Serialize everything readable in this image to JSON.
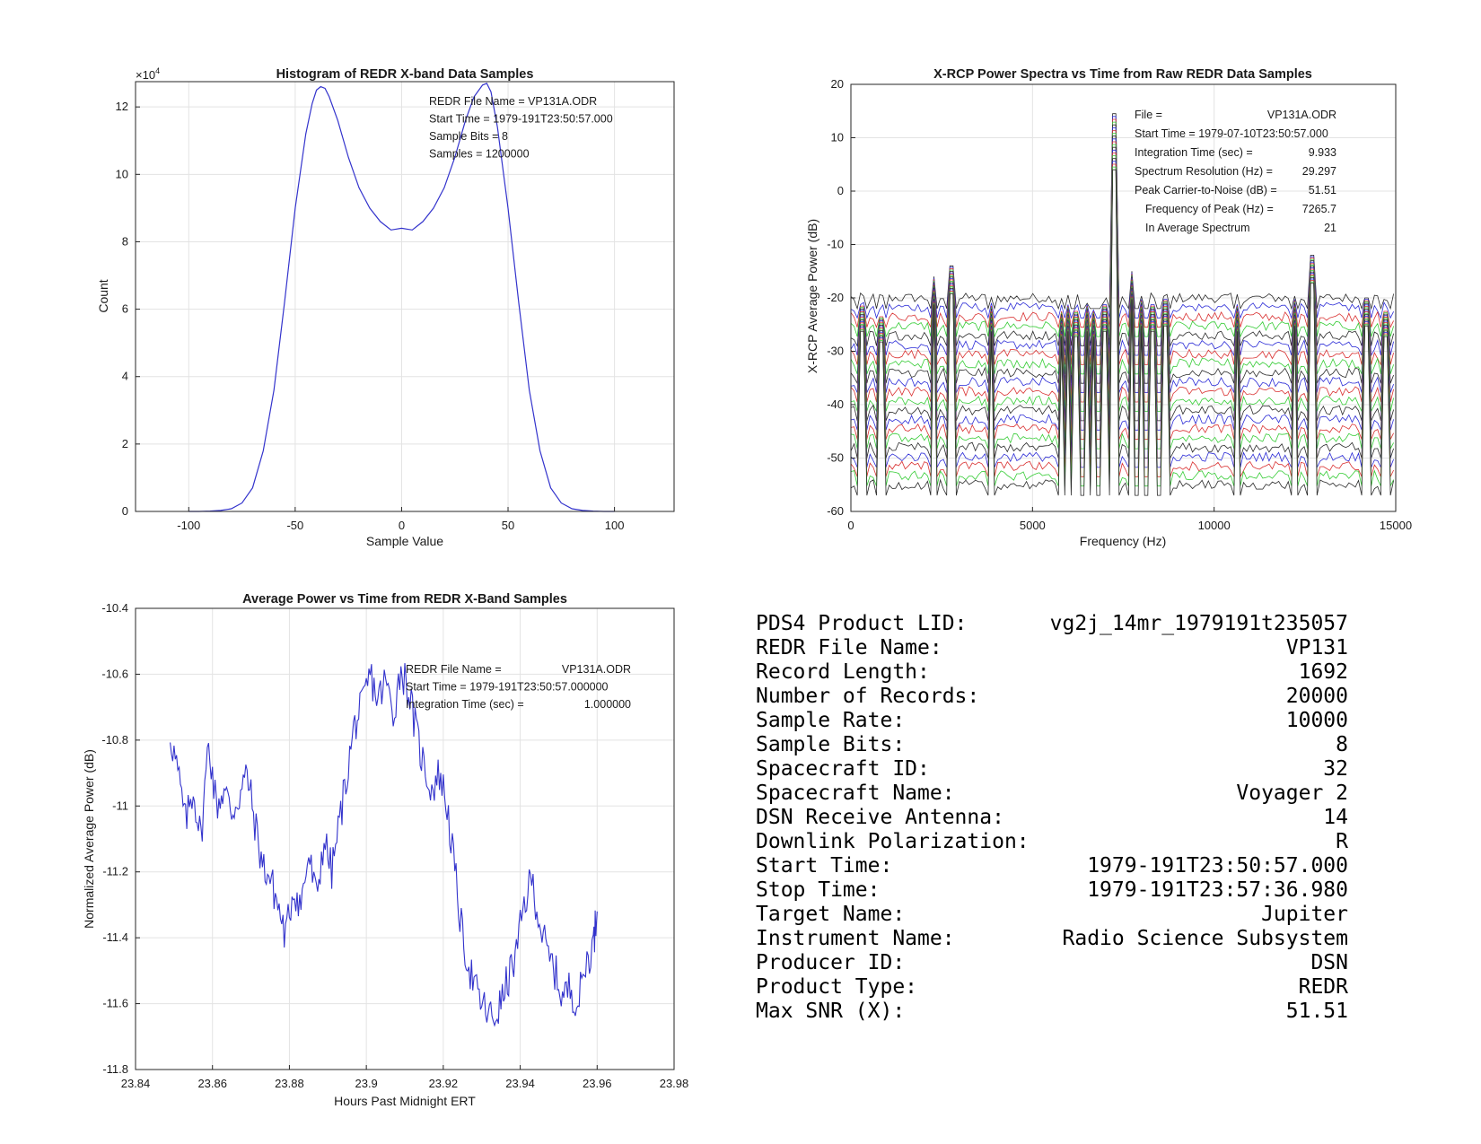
{
  "chart_data": [
    {
      "type": "line",
      "title": "Histogram of REDR X-band Data Samples",
      "xlabel": "Sample Value",
      "ylabel": "Count",
      "y_multiplier": "×10",
      "y_multiplier_exp": "4",
      "xlim": [
        -125,
        128
      ],
      "ylim": [
        0,
        12.75
      ],
      "xticks": [
        "-100",
        "-50",
        "0",
        "50",
        "100"
      ],
      "yticks": [
        "0",
        "2",
        "4",
        "6",
        "8",
        "10",
        "12"
      ],
      "grid": true,
      "line_color": "#3333cc",
      "annotations": [
        "REDR File Name = VP131A.ODR",
        "Start Time = 1979-191T23:50:57.000",
        "Sample Bits = 8",
        "Samples = 1200000"
      ],
      "series": [
        {
          "x": [
            -100,
            -95,
            -90,
            -85,
            -80,
            -75,
            -70,
            -65,
            -60,
            -55,
            -50,
            -45,
            -42,
            -40,
            -38,
            -36,
            -34,
            -30,
            -25,
            -20,
            -15,
            -10,
            -5,
            0,
            5,
            10,
            15,
            20,
            25,
            30,
            34,
            38,
            40,
            42,
            45,
            50,
            55,
            60,
            65,
            70,
            75,
            80,
            85,
            90,
            95,
            100
          ],
          "values": [
            0,
            0,
            0.01,
            0.03,
            0.08,
            0.25,
            0.7,
            1.8,
            3.6,
            6.2,
            9.0,
            11.2,
            12.1,
            12.5,
            12.6,
            12.55,
            12.3,
            11.6,
            10.5,
            9.6,
            9.0,
            8.6,
            8.35,
            8.4,
            8.35,
            8.6,
            9.0,
            9.6,
            10.5,
            11.6,
            12.3,
            12.65,
            12.7,
            12.45,
            11.4,
            9.0,
            6.2,
            3.6,
            1.8,
            0.7,
            0.25,
            0.08,
            0.03,
            0.01,
            0,
            0
          ]
        }
      ]
    },
    {
      "type": "line",
      "title": "X-RCP Power Spectra vs Time from Raw REDR Data Samples",
      "xlabel": "Frequency (Hz)",
      "ylabel": "X-RCP Average Power (dB)",
      "xlim": [
        0,
        15000
      ],
      "ylim": [
        -60,
        20
      ],
      "xticks": [
        "0",
        "5000",
        "10000",
        "15000"
      ],
      "yticks": [
        "-60",
        "-50",
        "-40",
        "-30",
        "-20",
        "-10",
        "0",
        "10",
        "20"
      ],
      "grid": true,
      "num_traces": 21,
      "trace_colors": [
        "#2a2a2a",
        "#2b2bd6",
        "#d93030",
        "#36cc36"
      ],
      "baseline_top_db": -20,
      "baseline_bottom_db": -55,
      "peak_freqs_hz": [
        300,
        850,
        2300,
        2750,
        3850,
        5800,
        6000,
        6200,
        6400,
        6550,
        6700,
        6850,
        7000,
        7265.7,
        7750,
        8000,
        8300,
        8650,
        10650,
        12200,
        12700,
        14200,
        14700
      ],
      "peak_tops_db": [
        -21,
        -23,
        -16,
        -14,
        -21,
        -22,
        -21,
        -22,
        -22,
        -21,
        -22,
        -21,
        -21,
        14.5,
        -15,
        -20,
        -21,
        -20,
        -21,
        -20,
        -12,
        -20,
        -22
      ],
      "annotation_labels": [
        "File =",
        "Start Time = 1979-07-10T23:50:57.000",
        "Integration Time (sec) =",
        "Spectrum Resolution (Hz) =",
        "Peak Carrier-to-Noise (dB) =",
        "Frequency of Peak (Hz) =",
        "In Average Spectrum"
      ],
      "annotation_values": [
        "VP131A.ODR",
        "",
        "9.933",
        "29.297",
        "51.51",
        "7265.7",
        "21"
      ]
    },
    {
      "type": "line",
      "title": "Average Power vs Time from REDR X-Band Samples",
      "xlabel": "Hours Past Midnight ERT",
      "ylabel": "Normalized Average Power (dB)",
      "xlim": [
        23.84,
        23.98
      ],
      "ylim": [
        -11.8,
        -10.4
      ],
      "xticks": [
        "23.84",
        "23.86",
        "23.88",
        "23.9",
        "23.92",
        "23.94",
        "23.96",
        "23.98"
      ],
      "yticks": [
        "-11.8",
        "-11.6",
        "-11.4",
        "-11.2",
        "-11",
        "-10.8",
        "-10.6",
        "-10.4"
      ],
      "grid": true,
      "line_color": "#3333cc",
      "annotation_labels": [
        "REDR File Name =",
        "Start Time = 1979-191T23:50:57.000000",
        "Integration Time (sec) ="
      ],
      "annotation_values": [
        "VP131A.ODR",
        "",
        "1.000000"
      ],
      "series": [
        {
          "x": [
            23.849,
            23.851,
            23.853,
            23.855,
            23.857,
            23.859,
            23.861,
            23.863,
            23.865,
            23.867,
            23.869,
            23.871,
            23.873,
            23.875,
            23.877,
            23.879,
            23.881,
            23.883,
            23.885,
            23.887,
            23.889,
            23.891,
            23.893,
            23.895,
            23.897,
            23.899,
            23.901,
            23.903,
            23.905,
            23.907,
            23.909,
            23.911,
            23.913,
            23.915,
            23.917,
            23.919,
            23.921,
            23.923,
            23.925,
            23.927,
            23.929,
            23.931,
            23.933,
            23.935,
            23.937,
            23.939,
            23.941,
            23.943,
            23.945,
            23.947,
            23.949,
            23.951,
            23.953,
            23.955,
            23.957,
            23.959,
            23.96
          ],
          "values": [
            -10.78,
            -10.9,
            -11.05,
            -10.95,
            -11.1,
            -10.8,
            -11.0,
            -10.95,
            -11.02,
            -10.97,
            -10.9,
            -11.05,
            -11.18,
            -11.22,
            -11.3,
            -11.4,
            -11.25,
            -11.3,
            -11.15,
            -11.28,
            -11.1,
            -11.2,
            -11.05,
            -10.9,
            -10.75,
            -10.7,
            -10.6,
            -10.68,
            -10.62,
            -10.72,
            -10.58,
            -10.65,
            -10.78,
            -10.88,
            -10.95,
            -10.9,
            -11.0,
            -11.2,
            -11.4,
            -11.5,
            -11.58,
            -11.62,
            -11.65,
            -11.6,
            -11.52,
            -11.45,
            -11.3,
            -11.22,
            -11.35,
            -11.45,
            -11.5,
            -11.58,
            -11.55,
            -11.6,
            -11.48,
            -11.42,
            -11.32
          ]
        }
      ]
    }
  ],
  "metadata_table": [
    {
      "label": "PDS4 Product LID:",
      "value": "vg2j_14mr_1979191t235057"
    },
    {
      "label": "REDR File Name:",
      "value": "VP131"
    },
    {
      "label": "Record Length:",
      "value": "1692"
    },
    {
      "label": "Number of Records:",
      "value": "20000"
    },
    {
      "label": "Sample Rate:",
      "value": "10000"
    },
    {
      "label": "Sample Bits:",
      "value": "8"
    },
    {
      "label": "Spacecraft ID:",
      "value": "32"
    },
    {
      "label": "Spacecraft Name:",
      "value": "Voyager 2"
    },
    {
      "label": "DSN Receive Antenna:",
      "value": "14"
    },
    {
      "label": "Downlink Polarization:",
      "value": "R"
    },
    {
      "label": "Start Time:",
      "value": "1979-191T23:50:57.000"
    },
    {
      "label": "Stop Time:",
      "value": "1979-191T23:57:36.980"
    },
    {
      "label": "Target Name:",
      "value": "Jupiter"
    },
    {
      "label": "Instrument Name:",
      "value": "Radio Science Subsystem"
    },
    {
      "label": "Producer ID:",
      "value": "DSN"
    },
    {
      "label": "Product Type:",
      "value": "REDR"
    },
    {
      "label": "Max SNR (X):",
      "value": "51.51"
    }
  ]
}
